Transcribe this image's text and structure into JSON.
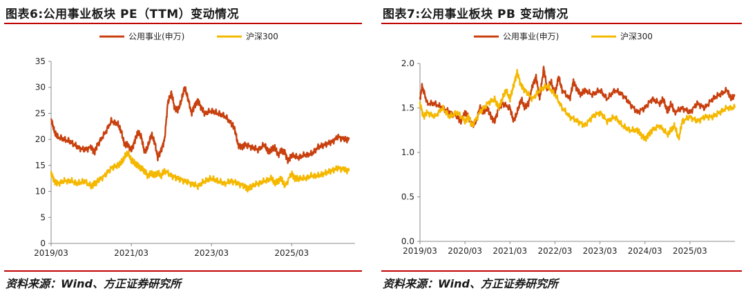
{
  "left": {
    "title": "图表6:公用事业板块 PE（TTM）变动情况",
    "source": "资料来源：Wind、方正证券研究所"
  },
  "right": {
    "title": "图表7:公用事业板块 PB 变动情况",
    "source": "资料来源：Wind、方正证券研究所"
  },
  "colors": {
    "utility": "#c8400e",
    "hs300": "#f5b800",
    "rule": "#c00000"
  },
  "chart_data": [
    {
      "type": "line",
      "title": "公用事业板块 PE（TTM）",
      "xlabel": "",
      "ylabel": "",
      "xlim": [
        2019.17,
        2026.75
      ],
      "ylim": [
        0,
        35
      ],
      "yticks": [
        0,
        5,
        10,
        15,
        20,
        25,
        30,
        35
      ],
      "ytick_labels": [
        "0",
        "5",
        "10",
        "15",
        "20",
        "25",
        "30",
        "35"
      ],
      "xticks": [
        2019.17,
        2021.17,
        2023.17,
        2025.17
      ],
      "xtick_labels": [
        "2019/03",
        "2021/03",
        "2023/03",
        "2025/03"
      ],
      "legend_position": "top-center",
      "series": [
        {
          "name": "公用事业(申万)",
          "color": "#c8400e",
          "x": [
            2019.17,
            2019.25,
            2019.33,
            2019.5,
            2019.67,
            2019.83,
            2020.0,
            2020.17,
            2020.25,
            2020.33,
            2020.5,
            2020.67,
            2020.83,
            2020.92,
            2021.0,
            2021.08,
            2021.17,
            2021.25,
            2021.33,
            2021.42,
            2021.5,
            2021.58,
            2021.67,
            2021.75,
            2021.83,
            2021.92,
            2022.0,
            2022.08,
            2022.17,
            2022.25,
            2022.33,
            2022.42,
            2022.5,
            2022.58,
            2022.67,
            2022.75,
            2022.83,
            2022.92,
            2023.0,
            2023.17,
            2023.33,
            2023.5,
            2023.67,
            2023.75,
            2023.83,
            2023.92,
            2024.0,
            2024.17,
            2024.33,
            2024.5,
            2024.58,
            2024.67,
            2024.75,
            2024.83,
            2024.92,
            2025.0,
            2025.08,
            2025.17,
            2025.33,
            2025.5,
            2025.67,
            2025.83,
            2026.0,
            2026.17,
            2026.33,
            2026.5,
            2026.6
          ],
          "y": [
            24,
            21.5,
            20.5,
            20,
            19.5,
            18.5,
            18,
            18.5,
            17.5,
            19,
            21,
            23.5,
            23,
            21.5,
            19,
            19,
            18,
            19.5,
            21.5,
            20.5,
            17.5,
            18.5,
            21,
            19.5,
            16.5,
            18,
            20,
            27,
            29,
            26,
            25.5,
            27.5,
            30,
            28,
            25,
            26.5,
            27.5,
            26,
            25,
            25.5,
            25,
            24.5,
            23,
            22,
            19,
            18.5,
            19,
            18.5,
            18,
            19,
            17.5,
            18,
            18.5,
            17,
            18,
            17.5,
            15.8,
            17,
            16.5,
            17,
            17.2,
            18.5,
            19,
            19.5,
            20.5,
            20,
            20
          ]
        },
        {
          "name": "沪深300",
          "color": "#f5b800",
          "x": [
            2019.17,
            2019.25,
            2019.33,
            2019.5,
            2019.67,
            2019.83,
            2020.0,
            2020.17,
            2020.25,
            2020.33,
            2020.5,
            2020.67,
            2020.83,
            2020.92,
            2021.0,
            2021.08,
            2021.17,
            2021.25,
            2021.33,
            2021.42,
            2021.5,
            2021.58,
            2021.67,
            2021.75,
            2021.83,
            2021.92,
            2022.0,
            2022.17,
            2022.33,
            2022.5,
            2022.67,
            2022.83,
            2023.0,
            2023.17,
            2023.33,
            2023.5,
            2023.67,
            2023.83,
            2024.0,
            2024.08,
            2024.17,
            2024.33,
            2024.5,
            2024.67,
            2024.75,
            2024.83,
            2024.92,
            2025.0,
            2025.17,
            2025.25,
            2025.33,
            2025.5,
            2025.67,
            2025.83,
            2026.0,
            2026.17,
            2026.33,
            2026.5,
            2026.6
          ],
          "y": [
            13.5,
            12,
            11.5,
            12,
            12,
            11.5,
            12,
            11,
            11.5,
            12,
            13,
            14.5,
            15,
            15.5,
            16.5,
            17.5,
            16,
            15.5,
            15,
            14.5,
            14,
            13,
            13.5,
            13,
            13.5,
            13,
            14,
            13,
            12.5,
            12,
            11.5,
            11,
            12,
            12.5,
            12,
            11.5,
            12,
            11.5,
            11,
            10.5,
            11,
            11.5,
            12,
            12.5,
            11.5,
            12,
            12.5,
            11,
            13.5,
            12.5,
            12.5,
            12.5,
            13,
            13,
            13.5,
            14,
            14.5,
            14.2,
            14
          ]
        }
      ]
    },
    {
      "type": "line",
      "title": "公用事业板块 PB",
      "xlabel": "",
      "ylabel": "",
      "xlim": [
        2019.17,
        2026.17
      ],
      "ylim": [
        0,
        2.0
      ],
      "yticks": [
        0,
        0.5,
        1.0,
        1.5,
        2.0
      ],
      "ytick_labels": [
        "0.0",
        "0.5",
        "1.0",
        "1.5",
        "2.0"
      ],
      "xticks": [
        2019.17,
        2020.17,
        2021.17,
        2022.17,
        2023.17,
        2024.17,
        2025.17
      ],
      "xtick_labels": [
        "2019/03",
        "2020/03",
        "2021/03",
        "2022/03",
        "2023/03",
        "2024/03",
        "2025/03"
      ],
      "legend_position": "top-center",
      "series": [
        {
          "name": "公用事业(申万)",
          "color": "#c8400e",
          "x": [
            2019.17,
            2019.22,
            2019.33,
            2019.5,
            2019.67,
            2019.83,
            2020.0,
            2020.08,
            2020.17,
            2020.25,
            2020.33,
            2020.42,
            2020.5,
            2020.58,
            2020.67,
            2020.75,
            2020.83,
            2020.92,
            2021.0,
            2021.17,
            2021.25,
            2021.33,
            2021.42,
            2021.5,
            2021.58,
            2021.67,
            2021.75,
            2021.83,
            2021.92,
            2022.0,
            2022.08,
            2022.17,
            2022.25,
            2022.33,
            2022.5,
            2022.58,
            2022.67,
            2022.75,
            2022.83,
            2023.0,
            2023.17,
            2023.33,
            2023.5,
            2023.67,
            2023.83,
            2024.0,
            2024.17,
            2024.33,
            2024.5,
            2024.58,
            2024.67,
            2024.75,
            2024.83,
            2025.0,
            2025.17,
            2025.33,
            2025.5,
            2025.67,
            2025.83,
            2026.0,
            2026.08,
            2026.17
          ],
          "y": [
            1.6,
            1.75,
            1.55,
            1.55,
            1.5,
            1.45,
            1.4,
            1.35,
            1.45,
            1.4,
            1.3,
            1.35,
            1.5,
            1.45,
            1.5,
            1.4,
            1.35,
            1.5,
            1.55,
            1.5,
            1.35,
            1.45,
            1.6,
            1.5,
            1.55,
            1.75,
            1.85,
            1.6,
            1.95,
            1.7,
            1.8,
            1.65,
            1.85,
            1.7,
            1.6,
            1.8,
            1.7,
            1.65,
            1.7,
            1.65,
            1.7,
            1.6,
            1.7,
            1.65,
            1.55,
            1.45,
            1.5,
            1.6,
            1.55,
            1.6,
            1.45,
            1.55,
            1.45,
            1.5,
            1.45,
            1.55,
            1.5,
            1.6,
            1.65,
            1.7,
            1.6,
            1.65
          ]
        },
        {
          "name": "沪深300",
          "color": "#f5b800",
          "x": [
            2019.17,
            2019.25,
            2019.33,
            2019.5,
            2019.67,
            2019.83,
            2020.0,
            2020.17,
            2020.25,
            2020.33,
            2020.5,
            2020.67,
            2020.83,
            2020.92,
            2021.0,
            2021.08,
            2021.17,
            2021.25,
            2021.33,
            2021.42,
            2021.5,
            2021.67,
            2021.83,
            2022.0,
            2022.17,
            2022.33,
            2022.5,
            2022.67,
            2022.83,
            2023.0,
            2023.17,
            2023.33,
            2023.5,
            2023.67,
            2023.83,
            2024.0,
            2024.08,
            2024.17,
            2024.25,
            2024.33,
            2024.5,
            2024.67,
            2024.75,
            2024.83,
            2024.92,
            2025.0,
            2025.17,
            2025.33,
            2025.5,
            2025.67,
            2025.83,
            2026.0,
            2026.17
          ],
          "y": [
            1.55,
            1.4,
            1.45,
            1.4,
            1.5,
            1.4,
            1.45,
            1.35,
            1.4,
            1.3,
            1.45,
            1.55,
            1.6,
            1.5,
            1.6,
            1.7,
            1.6,
            1.75,
            1.9,
            1.75,
            1.7,
            1.6,
            1.7,
            1.75,
            1.65,
            1.5,
            1.4,
            1.35,
            1.3,
            1.4,
            1.45,
            1.35,
            1.4,
            1.3,
            1.25,
            1.25,
            1.2,
            1.15,
            1.2,
            1.25,
            1.3,
            1.2,
            1.25,
            1.3,
            1.15,
            1.35,
            1.4,
            1.35,
            1.4,
            1.4,
            1.45,
            1.5,
            1.5
          ]
        }
      ]
    }
  ]
}
